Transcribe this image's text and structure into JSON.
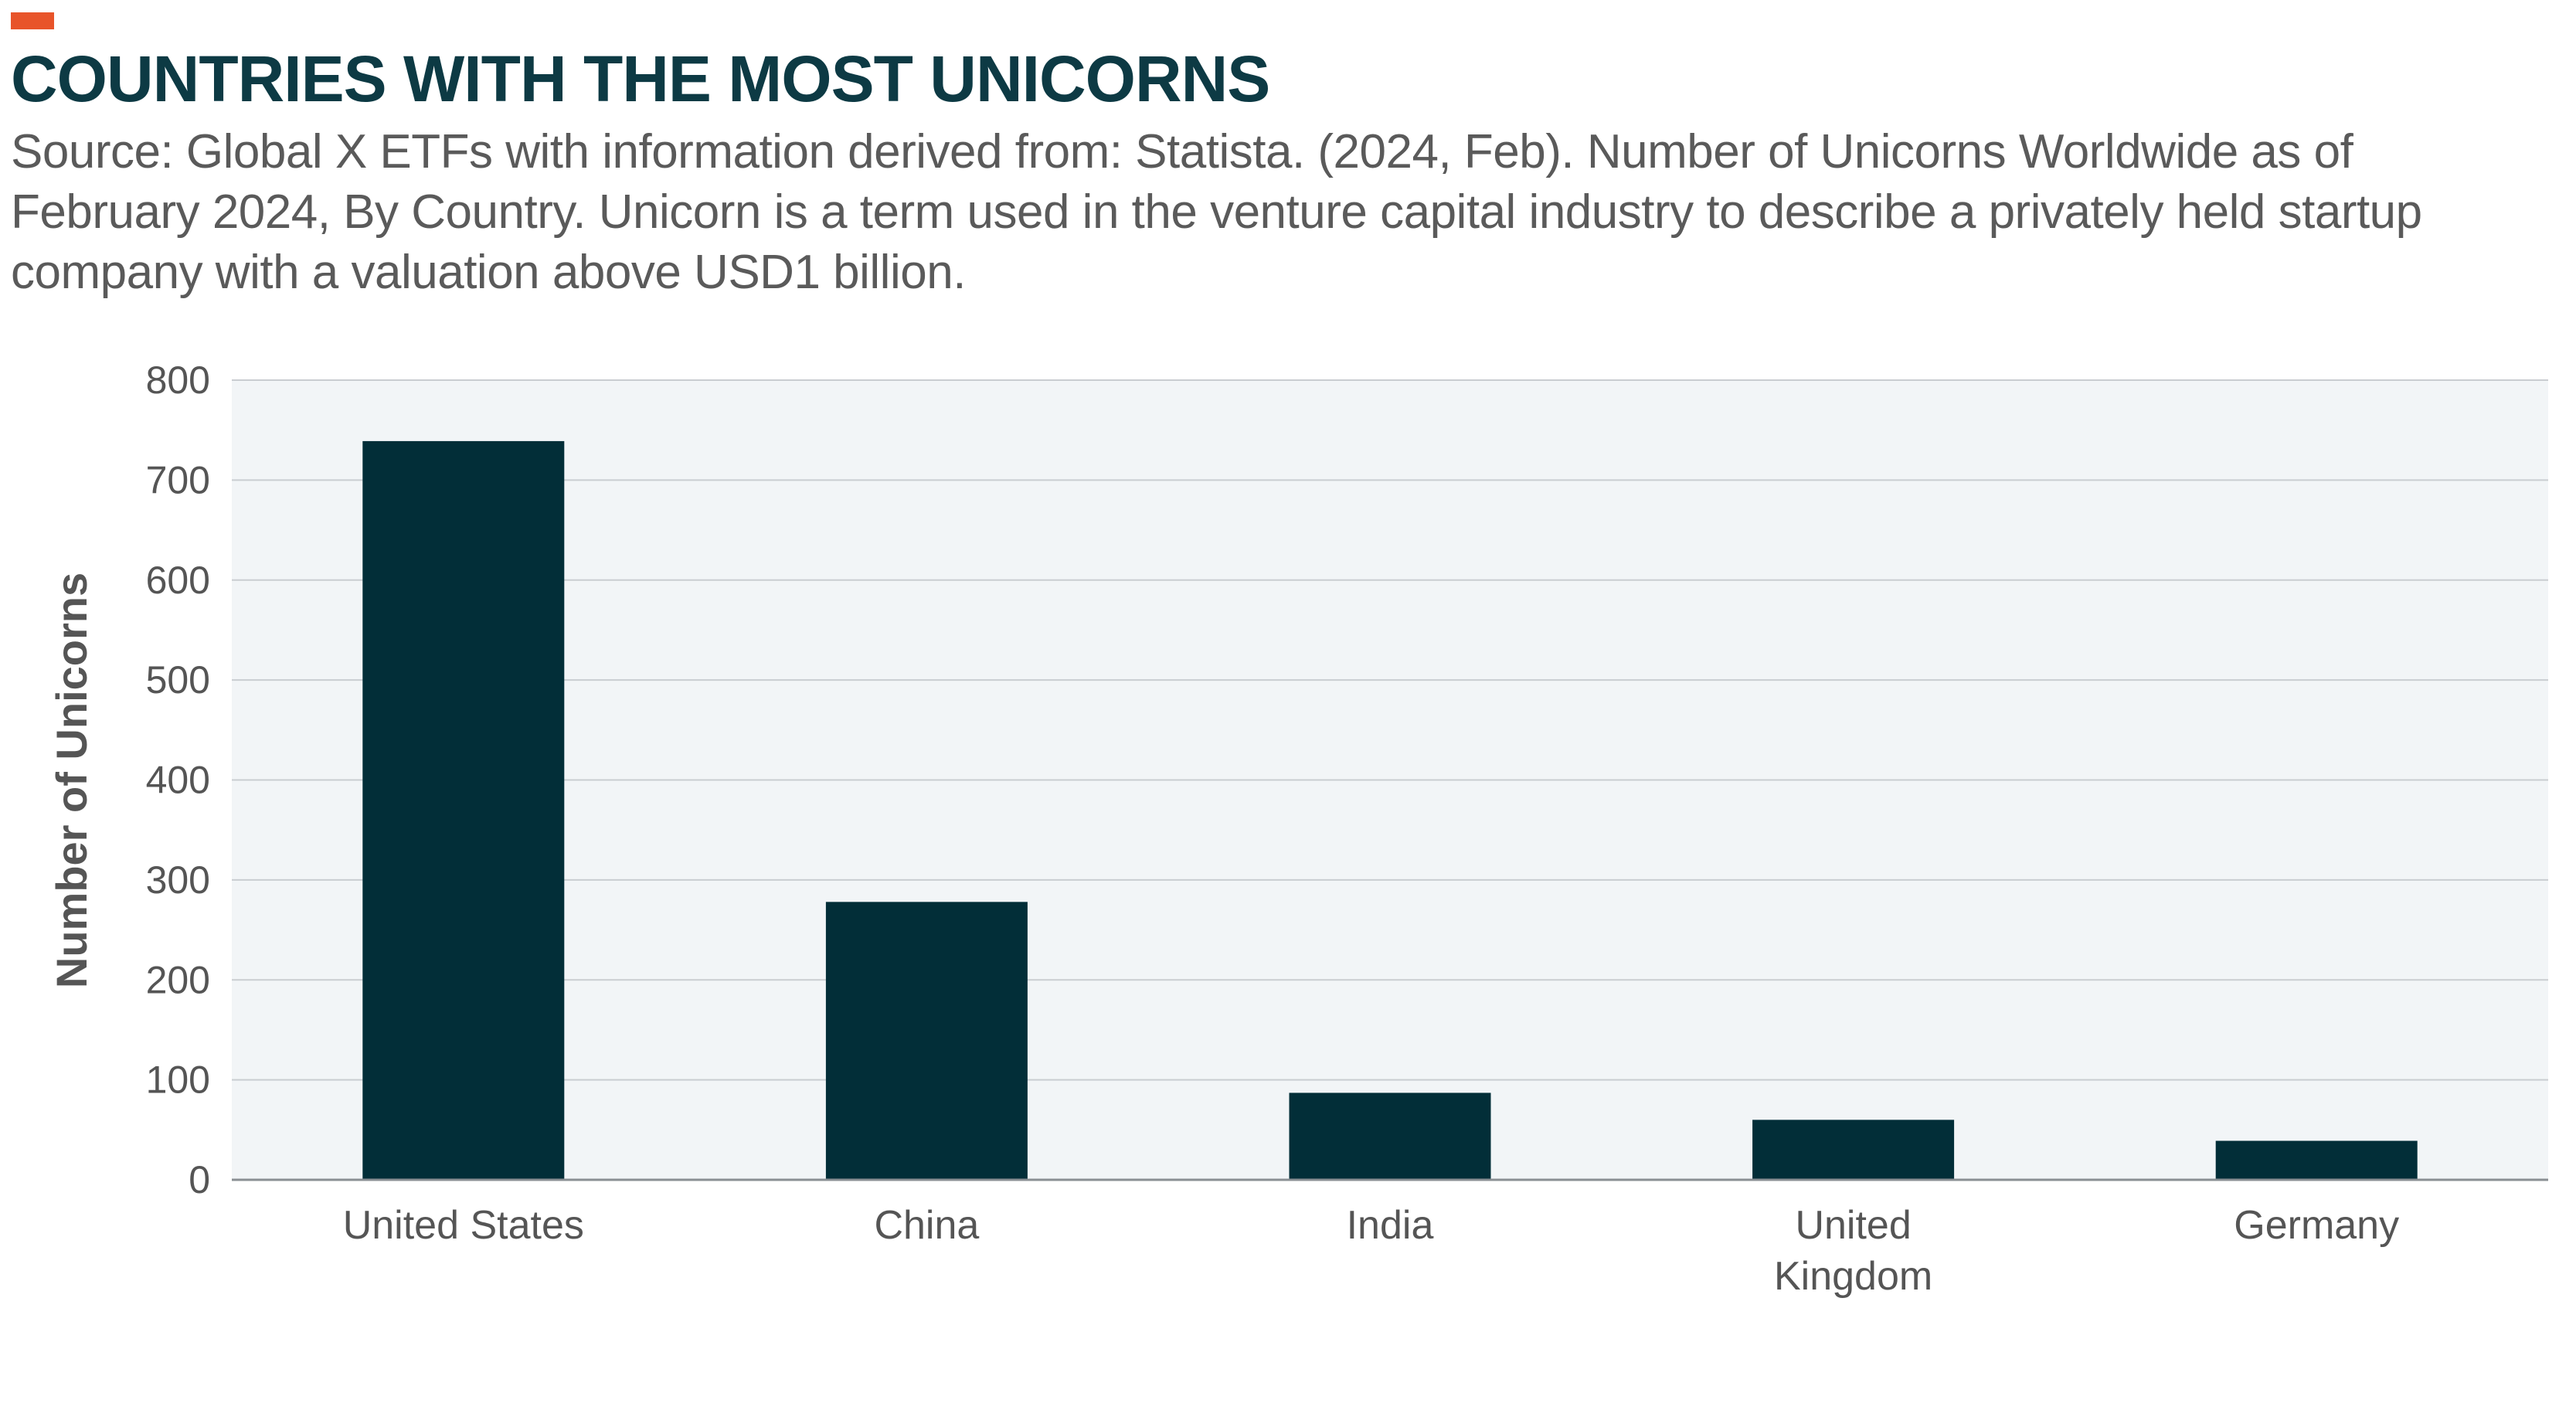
{
  "header": {
    "title": "COUNTRIES WITH THE MOST UNICORNS",
    "subtitle": "Source: Global X ETFs with information derived from: Statista. (2024, Feb). Number of Unicorns Worldwide as of February 2024, By Country. Unicorn is a term used in the venture capital industry to describe a privately held startup company with a valuation above USD1 billion."
  },
  "colors": {
    "accent": "#E8542A",
    "title": "#0D3A44",
    "bar": "#022E38",
    "plot_background": "#F2F5F7",
    "gridline": "#C9CDD1",
    "text": "#555555"
  },
  "chart_data": {
    "type": "bar",
    "title": "COUNTRIES WITH THE MOST UNICORNS",
    "xlabel": "",
    "ylabel": "Number of Unicorns",
    "categories": [
      "United States",
      "China",
      "India",
      "United Kingdom",
      "Germany"
    ],
    "category_labels": [
      [
        "United States"
      ],
      [
        "China"
      ],
      [
        "India"
      ],
      [
        "United",
        "Kingdom"
      ],
      [
        "Germany"
      ]
    ],
    "values": [
      739,
      278,
      87,
      60,
      39
    ],
    "ylim": [
      0,
      800
    ],
    "yticks": [
      0,
      100,
      200,
      300,
      400,
      500,
      600,
      700,
      800
    ],
    "grid": true,
    "legend": "none"
  }
}
